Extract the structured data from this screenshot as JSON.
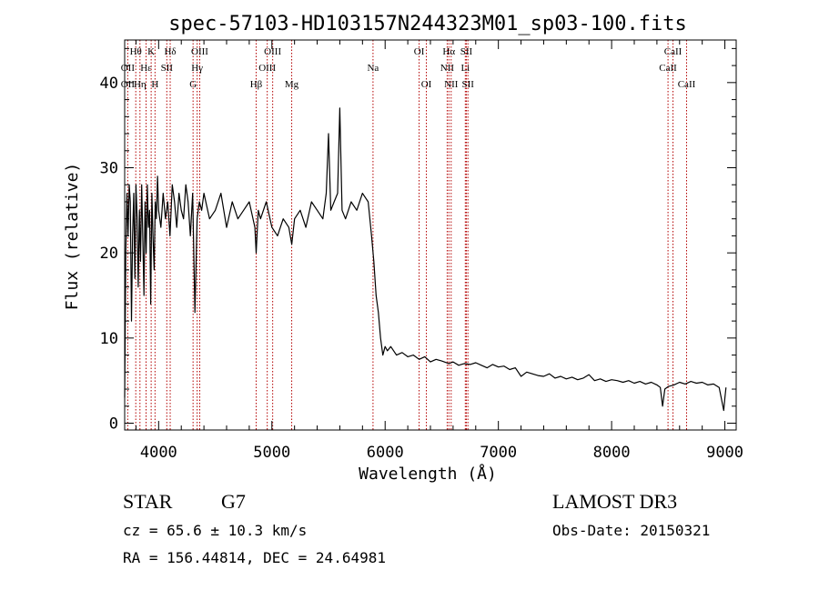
{
  "chart_data": {
    "type": "line",
    "title": "spec-57103-HD103157N244323M01_sp03-100.fits",
    "xlabel": "Wavelength (Å)",
    "ylabel": "Flux (relative)",
    "xlim": [
      3700,
      9100
    ],
    "ylim": [
      -0.8,
      45
    ],
    "xticks": [
      4000,
      5000,
      6000,
      7000,
      8000,
      9000
    ],
    "yticks": [
      0,
      10,
      20,
      30,
      40
    ],
    "grid": false,
    "line_color": "#000000",
    "series": [
      {
        "x": [
          3700,
          3710,
          3720,
          3730,
          3740,
          3750,
          3760,
          3770,
          3780,
          3790,
          3800,
          3810,
          3820,
          3830,
          3840,
          3850,
          3860,
          3870,
          3880,
          3890,
          3900,
          3910,
          3920,
          3930,
          3940,
          3950,
          3960,
          3970,
          3980,
          3990,
          4000,
          4020,
          4040,
          4060,
          4080,
          4100,
          4120,
          4140,
          4160,
          4180,
          4200,
          4220,
          4240,
          4260,
          4280,
          4300,
          4320,
          4340,
          4360,
          4380,
          4400,
          4450,
          4500,
          4550,
          4600,
          4650,
          4700,
          4750,
          4800,
          4850,
          4861,
          4880,
          4900,
          4950,
          5000,
          5050,
          5100,
          5150,
          5175,
          5200,
          5250,
          5300,
          5350,
          5400,
          5450,
          5480,
          5500,
          5520,
          5550,
          5580,
          5600,
          5620,
          5650,
          5700,
          5750,
          5800,
          5850,
          5880,
          5900,
          5920,
          5940,
          5960,
          5980,
          6000,
          6020,
          6050,
          6100,
          6150,
          6200,
          6250,
          6300,
          6350,
          6400,
          6450,
          6500,
          6563,
          6600,
          6650,
          6700,
          6750,
          6800,
          6850,
          6900,
          6950,
          7000,
          7050,
          7100,
          7150,
          7200,
          7250,
          7300,
          7350,
          7400,
          7450,
          7500,
          7550,
          7600,
          7650,
          7700,
          7750,
          7800,
          7850,
          7900,
          7950,
          8000,
          8050,
          8100,
          8150,
          8200,
          8250,
          8300,
          8350,
          8400,
          8430,
          8450,
          8470,
          8500,
          8550,
          8600,
          8650,
          8700,
          8750,
          8800,
          8850,
          8900,
          8950,
          8990,
          9000,
          9010
        ],
        "y": [
          3,
          20,
          27,
          22,
          28,
          26,
          12,
          22,
          27,
          17,
          28,
          24,
          16,
          25,
          19,
          28,
          22,
          15,
          26,
          20,
          28,
          23,
          25,
          14,
          27,
          22,
          18,
          26,
          24,
          29,
          25,
          23,
          27,
          24,
          26,
          22,
          28,
          26,
          23,
          27,
          25,
          24,
          28,
          26,
          22,
          27,
          13,
          24,
          26,
          25,
          27,
          24,
          25,
          27,
          23,
          26,
          24,
          25,
          26,
          23,
          20,
          25,
          24,
          26,
          23,
          22,
          24,
          23,
          21,
          24,
          25,
          23,
          26,
          25,
          24,
          27,
          34,
          25,
          26,
          27,
          37,
          25,
          24,
          26,
          25,
          27,
          26,
          22,
          19,
          15,
          13,
          10,
          8,
          9,
          8.5,
          9,
          8,
          8.3,
          7.8,
          8,
          7.5,
          7.8,
          7.2,
          7.5,
          7.3,
          7,
          7.2,
          6.8,
          7,
          6.9,
          7.1,
          6.8,
          6.5,
          6.9,
          6.6,
          6.7,
          6.3,
          6.5,
          5.5,
          6,
          5.8,
          5.6,
          5.5,
          5.8,
          5.3,
          5.5,
          5.2,
          5.4,
          5.1,
          5.3,
          5.7,
          5,
          5.2,
          4.9,
          5.1,
          5,
          4.8,
          5,
          4.7,
          4.9,
          4.6,
          4.8,
          4.5,
          4.2,
          2,
          4,
          4.3,
          4.5,
          4.8,
          4.6,
          4.9,
          4.7,
          4.8,
          4.5,
          4.6,
          4.2,
          1.5,
          3,
          4.2
        ]
      }
    ],
    "spectral_lines": [
      {
        "label": "OII",
        "x": 3727,
        "row": 2
      },
      {
        "label": "OII",
        "x": 3727,
        "row": 3
      },
      {
        "label": "Hθ",
        "x": 3798,
        "row": 1
      },
      {
        "label": "Hη",
        "x": 3835,
        "row": 3
      },
      {
        "label": "Hε",
        "x": 3889,
        "row": 2
      },
      {
        "label": "K",
        "x": 3934,
        "row": 1
      },
      {
        "label": "H",
        "x": 3968,
        "row": 3
      },
      {
        "label": "SII",
        "x": 4072,
        "row": 2
      },
      {
        "label": "Hδ",
        "x": 4102,
        "row": 1
      },
      {
        "label": "G",
        "x": 4304,
        "row": 3
      },
      {
        "label": "Hγ",
        "x": 4340,
        "row": 2
      },
      {
        "label": "OIII",
        "x": 4363,
        "row": 1
      },
      {
        "label": "Hβ",
        "x": 4861,
        "row": 3
      },
      {
        "label": "OIII",
        "x": 4959,
        "row": 2
      },
      {
        "label": "OIII",
        "x": 5007,
        "row": 1
      },
      {
        "label": "Mg",
        "x": 5175,
        "row": 3
      },
      {
        "label": "Na",
        "x": 5893,
        "row": 2
      },
      {
        "label": "OI",
        "x": 6300,
        "row": 1
      },
      {
        "label": "OI",
        "x": 6364,
        "row": 3
      },
      {
        "label": "NII",
        "x": 6548,
        "row": 2
      },
      {
        "label": "Hα",
        "x": 6563,
        "row": 1
      },
      {
        "label": "NII",
        "x": 6583,
        "row": 3
      },
      {
        "label": "Li",
        "x": 6708,
        "row": 2
      },
      {
        "label": "SII",
        "x": 6717,
        "row": 1
      },
      {
        "label": "SII",
        "x": 6731,
        "row": 3
      },
      {
        "label": "CaII",
        "x": 8498,
        "row": 2
      },
      {
        "label": "CaII",
        "x": 8542,
        "row": 1
      },
      {
        "label": "CaII",
        "x": 8662,
        "row": 3
      }
    ],
    "line_marker_color": "#b30000"
  },
  "info": {
    "object_class": "STAR",
    "subclass": "G7",
    "survey": "LAMOST DR3",
    "redshift": "cz = 65.6 ± 10.3 km/s",
    "obs_date": "Obs-Date: 20150321",
    "coords": "RA = 156.44814, DEC =  24.64981"
  }
}
